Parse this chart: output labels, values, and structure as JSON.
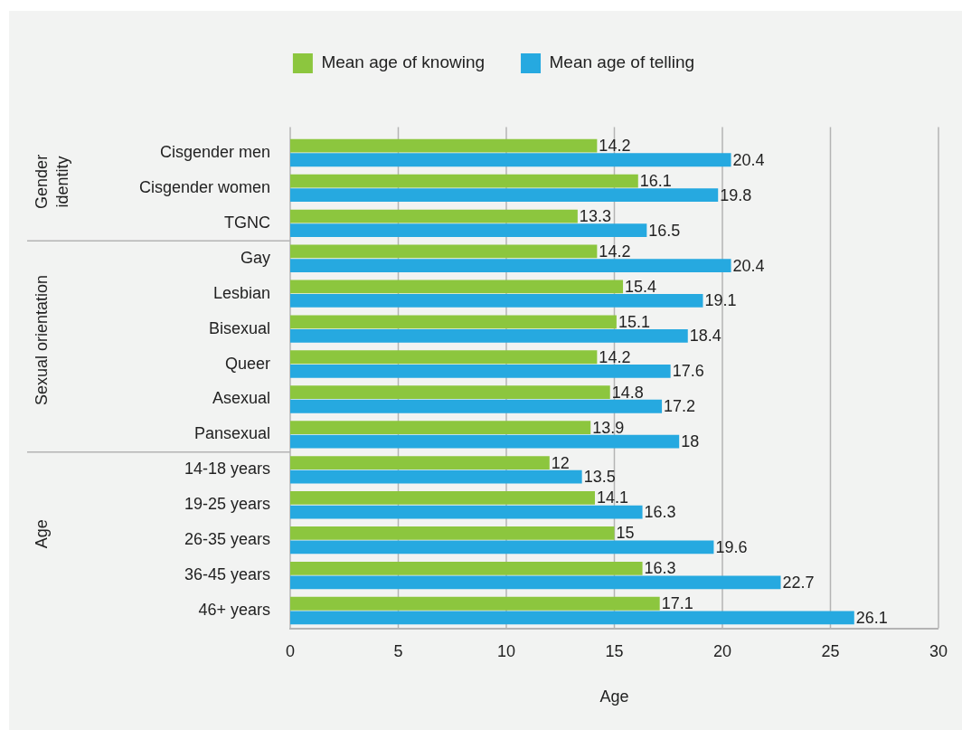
{
  "chart_data": {
    "type": "bar",
    "orientation": "horizontal",
    "categories": [
      "Cisgender men",
      "Cisgender women",
      "TGNC",
      "Gay",
      "Lesbian",
      "Bisexual",
      "Queer",
      "Asexual",
      "Pansexual",
      "14-18 years",
      "19-25 years",
      "26-35 years",
      "36-45 years",
      "46+ years"
    ],
    "series": [
      {
        "name": "Mean age of knowing",
        "color": "#8cc63e",
        "values": [
          14.2,
          16.1,
          13.3,
          14.2,
          15.4,
          15.1,
          14.2,
          14.8,
          13.9,
          12,
          14.1,
          15,
          16.3,
          17.1
        ]
      },
      {
        "name": "Mean age of telling",
        "color": "#26a9e0",
        "values": [
          20.4,
          19.8,
          16.5,
          20.4,
          19.1,
          18.4,
          17.6,
          17.2,
          18,
          13.5,
          16.3,
          19.6,
          22.7,
          26.1
        ]
      }
    ],
    "xlabel": "Age",
    "xlim": [
      0,
      30
    ],
    "xticks": [
      0,
      5,
      10,
      15,
      20,
      25,
      30
    ],
    "grid": "x",
    "legend": "top",
    "data_labels": true,
    "annotations": [
      "Gender identity",
      "Sexual orientation",
      "Age"
    ]
  }
}
